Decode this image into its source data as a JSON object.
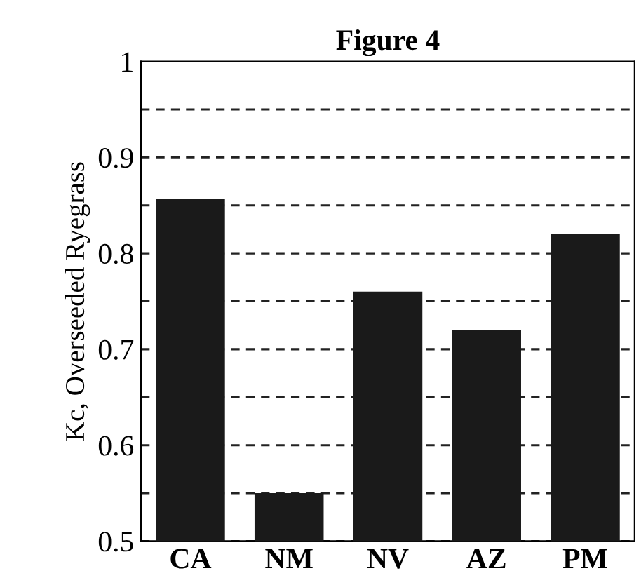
{
  "chart_data": {
    "type": "bar",
    "title": "Figure 4",
    "ylabel": "Kc, Overseeded Ryegrass",
    "categories": [
      "CA",
      "NM",
      "NV",
      "AZ",
      "PM"
    ],
    "values": [
      0.857,
      0.55,
      0.76,
      0.72,
      0.82
    ],
    "color": "#1a1a1a",
    "ylim": [
      0.5,
      1
    ],
    "yticks": [
      0.5,
      {
        "value": 0.55,
        "label": null
      },
      0.6,
      {
        "value": 0.65,
        "label": null
      },
      0.7,
      {
        "value": 0.75,
        "label": null
      },
      0.8,
      {
        "value": 0.85,
        "label": null
      },
      0.9,
      {
        "value": 0.95,
        "label": null
      },
      1
    ],
    "grid": "y",
    "line_style": "dashed"
  }
}
